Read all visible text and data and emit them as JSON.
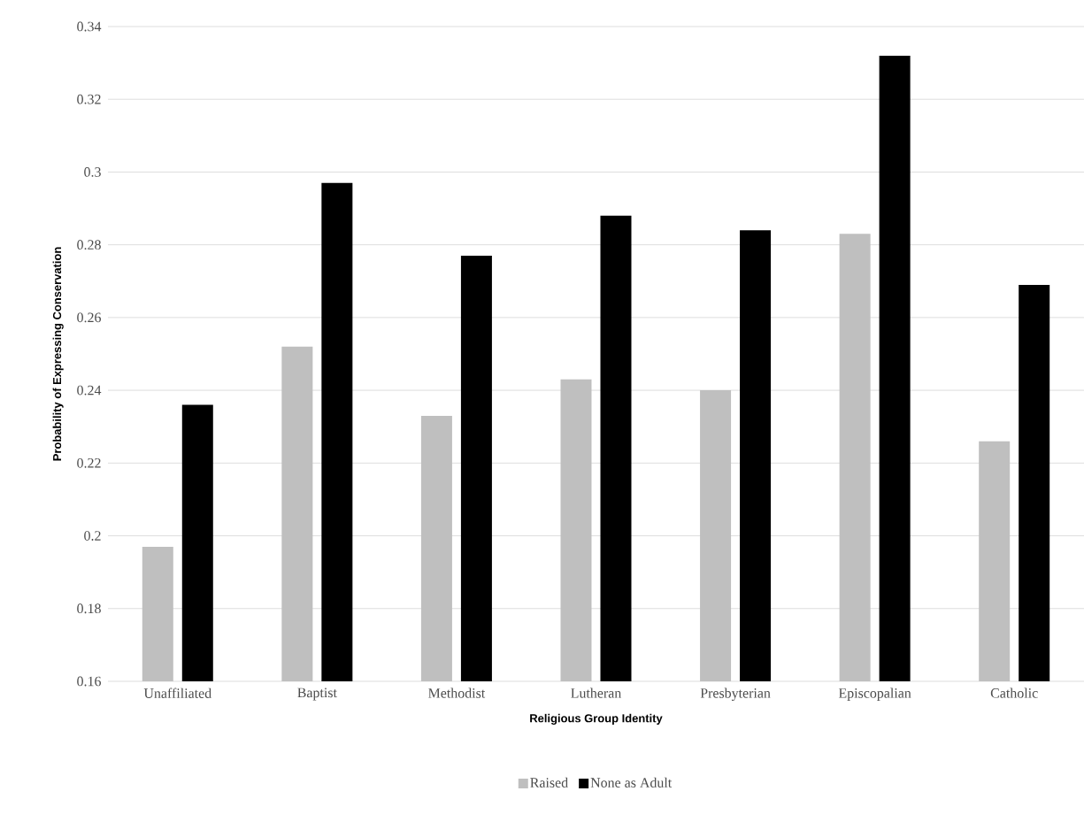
{
  "chart_data": {
    "type": "bar",
    "xlabel": "Religious Group Identity",
    "ylabel": "Probability of Expressing Conservation",
    "categories": [
      "Unaffiliated",
      "Baptist",
      "Methodist",
      "Lutheran",
      "Presbyterian",
      "Episcopalian",
      "Catholic"
    ],
    "series": [
      {
        "name": "Raised",
        "color": "#bfbfbf",
        "values": [
          0.197,
          0.252,
          0.233,
          0.243,
          0.24,
          0.283,
          0.226
        ]
      },
      {
        "name": "None as Adult",
        "color": "#000000",
        "values": [
          0.236,
          0.297,
          0.277,
          0.288,
          0.284,
          0.332,
          0.269
        ]
      }
    ],
    "ylim": [
      0.16,
      0.34
    ],
    "yticks": [
      0.16,
      0.18,
      0.2,
      0.22,
      0.24,
      0.26,
      0.28,
      0.3,
      0.32,
      0.34
    ],
    "grid": "y",
    "legend": "bottom"
  }
}
